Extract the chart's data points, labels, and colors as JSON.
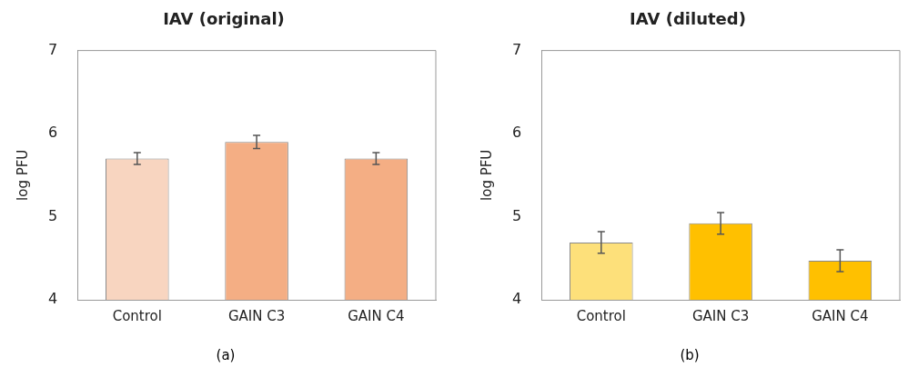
{
  "chart_data": [
    {
      "type": "bar",
      "title": "IAV (original)",
      "ylabel": "log PFU",
      "categories": [
        "Control",
        "GAIN C3",
        "GAIN C4"
      ],
      "values": [
        5.7,
        5.9,
        5.7
      ],
      "errors": [
        0.07,
        0.08,
        0.07
      ],
      "colors": [
        "#f8d5c0",
        "#f4ae84",
        "#f4ae84"
      ],
      "ylim": [
        4,
        7
      ],
      "yticks": [
        4,
        5,
        6,
        7
      ],
      "grid": false,
      "annotations": [
        "(a)"
      ]
    },
    {
      "type": "bar",
      "title": "IAV (diluted)",
      "ylabel": "log PFU",
      "categories": [
        "Control",
        "GAIN C3",
        "GAIN C4"
      ],
      "values": [
        4.69,
        4.92,
        4.47
      ],
      "errors": [
        0.13,
        0.13,
        0.13
      ],
      "colors": [
        "#fde07a",
        "#ffc000",
        "#ffc000"
      ],
      "ylim": [
        4,
        7
      ],
      "yticks": [
        4,
        5,
        6,
        7
      ],
      "grid": false,
      "annotations": [
        "(b)"
      ]
    }
  ]
}
